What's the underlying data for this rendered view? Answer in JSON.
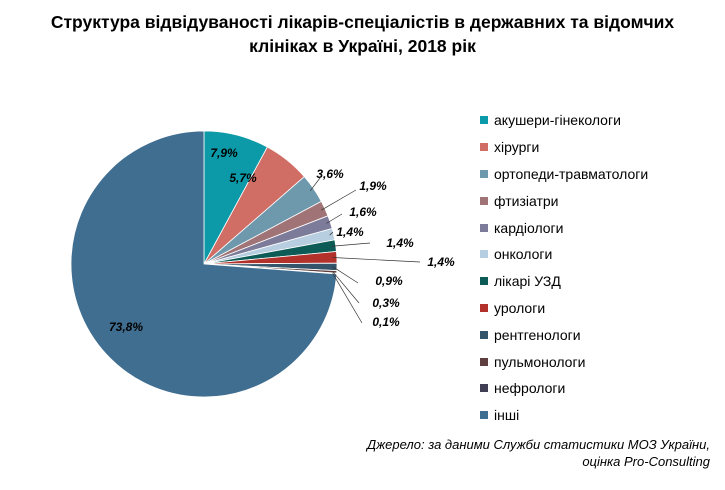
{
  "chart_data": {
    "type": "pie",
    "title": "Структура відвідуваності лікарів-спеціалістів в державних та відомчих клініках в Україні, 2018 рік",
    "title_lines": [
      "Структура відвідуваності лікарів-спеціалістів в державних та відомчих",
      "клініках в Україні, 2018 рік"
    ],
    "legend_position": "right",
    "slices": [
      {
        "label": "акушери-гінекологи",
        "value": 7.9,
        "value_label": "7,9%",
        "color": "#0d9aa8"
      },
      {
        "label": "хірурги",
        "value": 5.7,
        "value_label": "5,7%",
        "color": "#d06e66"
      },
      {
        "label": "ортопеди-травматологи",
        "value": 3.6,
        "value_label": "3,6%",
        "color": "#6e99ad"
      },
      {
        "label": "фтизіатри",
        "value": 1.9,
        "value_label": "1,9%",
        "color": "#a07476"
      },
      {
        "label": "кардіологи",
        "value": 1.6,
        "value_label": "1,6%",
        "color": "#7c7b9a"
      },
      {
        "label": "онкологи",
        "value": 1.4,
        "value_label": "1,4%",
        "color": "#b7cde0"
      },
      {
        "label": "лікарі УЗД",
        "value": 1.4,
        "value_label": "1,4%",
        "color": "#0c5b56"
      },
      {
        "label": "урологи",
        "value": 1.4,
        "value_label": "1,4%",
        "color": "#b2322b"
      },
      {
        "label": "рентгенологи",
        "value": 0.9,
        "value_label": "0,9%",
        "color": "#33546a"
      },
      {
        "label": "пульмонологи",
        "value": 0.3,
        "value_label": "0,3%",
        "color": "#5e3e3e"
      },
      {
        "label": "нефрологи",
        "value": 0.1,
        "value_label": "0,1%",
        "color": "#3f3e55"
      },
      {
        "label": "інші",
        "value": 73.8,
        "value_label": "73,8%",
        "color": "#406e90"
      }
    ]
  },
  "source_lines": [
    "Джерело: за даними Служби статистики МОЗ України,",
    "оцінка Pro-Consulting"
  ]
}
